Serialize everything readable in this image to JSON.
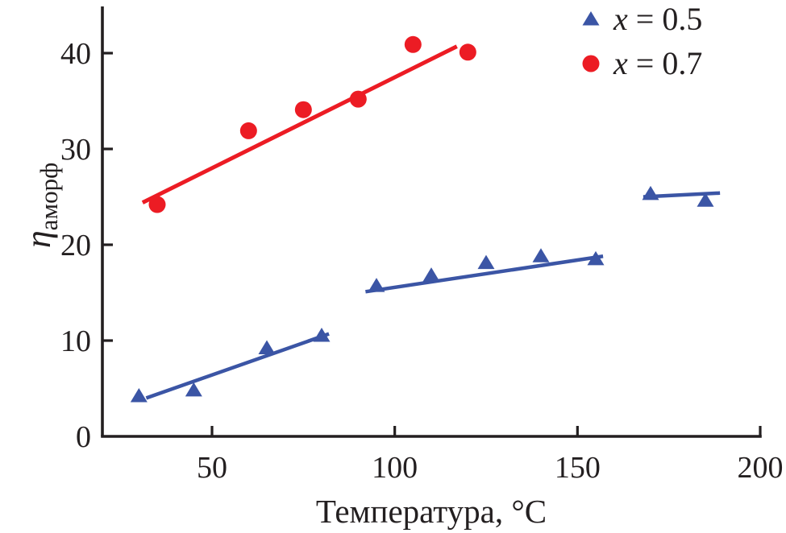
{
  "figure": {
    "background": "#ffffff",
    "text_color": "#231f20"
  },
  "chart_data": {
    "type": "scatter",
    "title": "",
    "xlabel": "Температура, °C",
    "ylabel_symbol": "η",
    "ylabel_subscript": "аморф",
    "xlim": [
      20,
      200
    ],
    "ylim": [
      0,
      45
    ],
    "grid": false,
    "legend_position": "top-right",
    "xticks": [
      "50",
      "100",
      "150",
      "200"
    ],
    "xtick_values": [
      50,
      100,
      150,
      200
    ],
    "yticks": [
      "0",
      "10",
      "20",
      "30",
      "40"
    ],
    "ytick_values": [
      0,
      10,
      20,
      30,
      40
    ],
    "series": [
      {
        "name": "x = 0.5",
        "label_var": "x",
        "label_rest": " = 0.5",
        "marker": "triangle",
        "color": "#3b55a5",
        "points": [
          [
            30,
            4.2
          ],
          [
            45,
            4.8
          ],
          [
            65,
            9.2
          ],
          [
            80,
            10.5
          ],
          [
            95,
            15.7
          ],
          [
            110,
            16.8
          ],
          [
            125,
            18.1
          ],
          [
            140,
            18.8
          ],
          [
            155,
            18.5
          ],
          [
            170,
            25.3
          ],
          [
            185,
            24.6
          ]
        ],
        "trendlines": [
          {
            "x1": 32,
            "y1": 4.0,
            "x2": 82,
            "y2": 10.7
          },
          {
            "x1": 92,
            "y1": 15.1,
            "x2": 157,
            "y2": 18.8
          },
          {
            "x1": 168,
            "y1": 25.0,
            "x2": 189,
            "y2": 25.4
          }
        ]
      },
      {
        "name": "x = 0.7",
        "label_var": "x",
        "label_rest": " = 0.7",
        "marker": "circle",
        "color": "#ec1c24",
        "points": [
          [
            35,
            24.2
          ],
          [
            60,
            31.9
          ],
          [
            75,
            34.1
          ],
          [
            90,
            35.2
          ],
          [
            105,
            40.9
          ],
          [
            120,
            40.1
          ]
        ],
        "trendlines": [
          {
            "x1": 31,
            "y1": 24.4,
            "x2": 117,
            "y2": 40.7
          }
        ]
      }
    ]
  }
}
